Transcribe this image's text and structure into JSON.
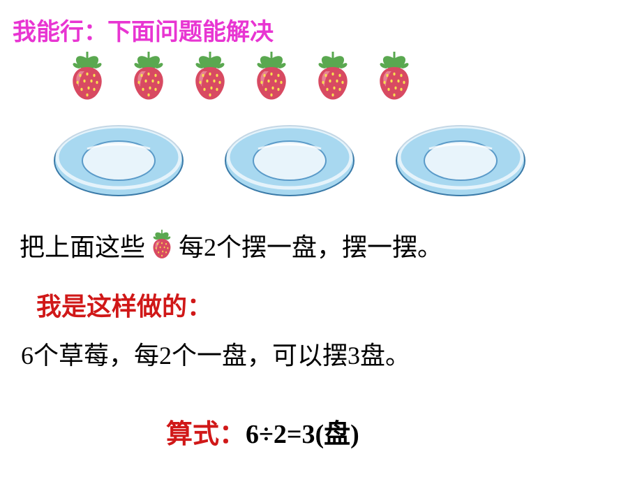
{
  "title": "我能行：下面问题能解决",
  "strawberry": {
    "count": 6,
    "body_color": "#d84a62",
    "seed_color": "#f7e050",
    "leaf_color": "#5aa850",
    "stem_color": "#5aa850",
    "highlight_color": "#f2a8b4"
  },
  "plate": {
    "count": 3,
    "outer_fill": "#a8d8f0",
    "outer_stroke": "#3a7aa8",
    "inner_fill": "#e8f4fb",
    "inner_stroke": "#5a9ac8",
    "rim_highlight": "#ffffff"
  },
  "question": {
    "part1": "把上面这些",
    "part2": "每2个摆一盘，摆一摆。"
  },
  "answer": {
    "label": "我是这样做的：",
    "text": "6个草莓，每2个一盘，可以摆3盘。"
  },
  "equation": {
    "label": "算式：",
    "expr": "6÷2=3(盘)"
  },
  "colors": {
    "title_color": "#e835d2",
    "label_color": "#d01818",
    "text_color": "#000000",
    "background": "#ffffff"
  }
}
